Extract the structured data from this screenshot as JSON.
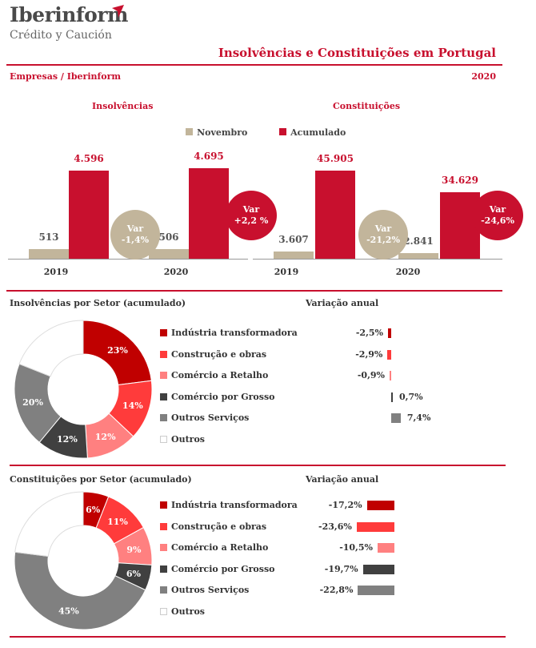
{
  "header": {
    "logo_name": "Iberinform",
    "logo_sub": "Crédito y Caución",
    "title": "Insolvências e Constituições em  Portugal",
    "subtitle_left": "Empresas / Iberinform",
    "subtitle_right": "2020"
  },
  "colors": {
    "red": "#c8102e",
    "tan": "#c2b59b",
    "sector": [
      "#c00000",
      "#ff3b3b",
      "#ff8080",
      "#404040",
      "#808080",
      "#ffffff"
    ]
  },
  "legend": {
    "novembro": "Novembro",
    "acumulado": "Acumulado"
  },
  "chart_data": [
    {
      "type": "bar",
      "title": "Insolvências",
      "categories": [
        "2019",
        "2020"
      ],
      "series": [
        {
          "name": "Novembro",
          "values": [
            513,
            506
          ],
          "labels": [
            "513",
            "506"
          ]
        },
        {
          "name": "Acumulado",
          "values": [
            4596,
            4695
          ],
          "labels": [
            "4.596",
            "4.695"
          ]
        }
      ],
      "ylim": [
        0,
        5000
      ],
      "var_novembro": "Var\n-1,4%",
      "var_acumulado": "Var\n+2,2 %"
    },
    {
      "type": "bar",
      "title": "Constituições",
      "categories": [
        "2019",
        "2020"
      ],
      "series": [
        {
          "name": "Novembro",
          "values": [
            3607,
            2841
          ],
          "labels": [
            "3.607",
            "2.841"
          ]
        },
        {
          "name": "Acumulado",
          "values": [
            45905,
            34629
          ],
          "labels": [
            "45.905",
            "34.629"
          ]
        }
      ],
      "ylim": [
        0,
        50000
      ],
      "var_novembro": "Var\n-21,2%",
      "var_acumulado": "Var\n-24,6%"
    },
    {
      "type": "pie",
      "title": "Insolvências por Setor (acumulado)",
      "variation_title": "Variação anual",
      "categories": [
        "Indústria transformadora",
        "Construção e obras",
        "Comércio a Retalho",
        "Comércio por Grosso",
        "Outros Serviços",
        "Outros"
      ],
      "values": [
        23,
        14,
        12,
        12,
        20,
        19
      ],
      "slice_labels": [
        "23%",
        "14%",
        "12%",
        "12%",
        "20%",
        ""
      ],
      "variation": [
        -2.5,
        -2.9,
        -0.9,
        0.7,
        7.4,
        null
      ],
      "variation_labels": [
        "-2,5%",
        "-2,9%",
        "-0,9%",
        "0,7%",
        "7,4%",
        ""
      ]
    },
    {
      "type": "pie",
      "title": "Constituições por Setor (acumulado)",
      "variation_title": "Variação anual",
      "categories": [
        "Indústria transformadora",
        "Construção e obras",
        "Comércio a Retalho",
        "Comércio por Grosso",
        "Outros Serviços",
        "Outros"
      ],
      "values": [
        6,
        11,
        9,
        6,
        45,
        23
      ],
      "slice_labels": [
        "6%",
        "11%",
        "9%",
        "6%",
        "45%",
        ""
      ],
      "variation": [
        -17.2,
        -23.6,
        -10.5,
        -19.7,
        -22.8,
        null
      ],
      "variation_labels": [
        "-17,2%",
        "-23,6%",
        "-10,5%",
        "-19,7%",
        "-22,8%",
        ""
      ]
    }
  ]
}
